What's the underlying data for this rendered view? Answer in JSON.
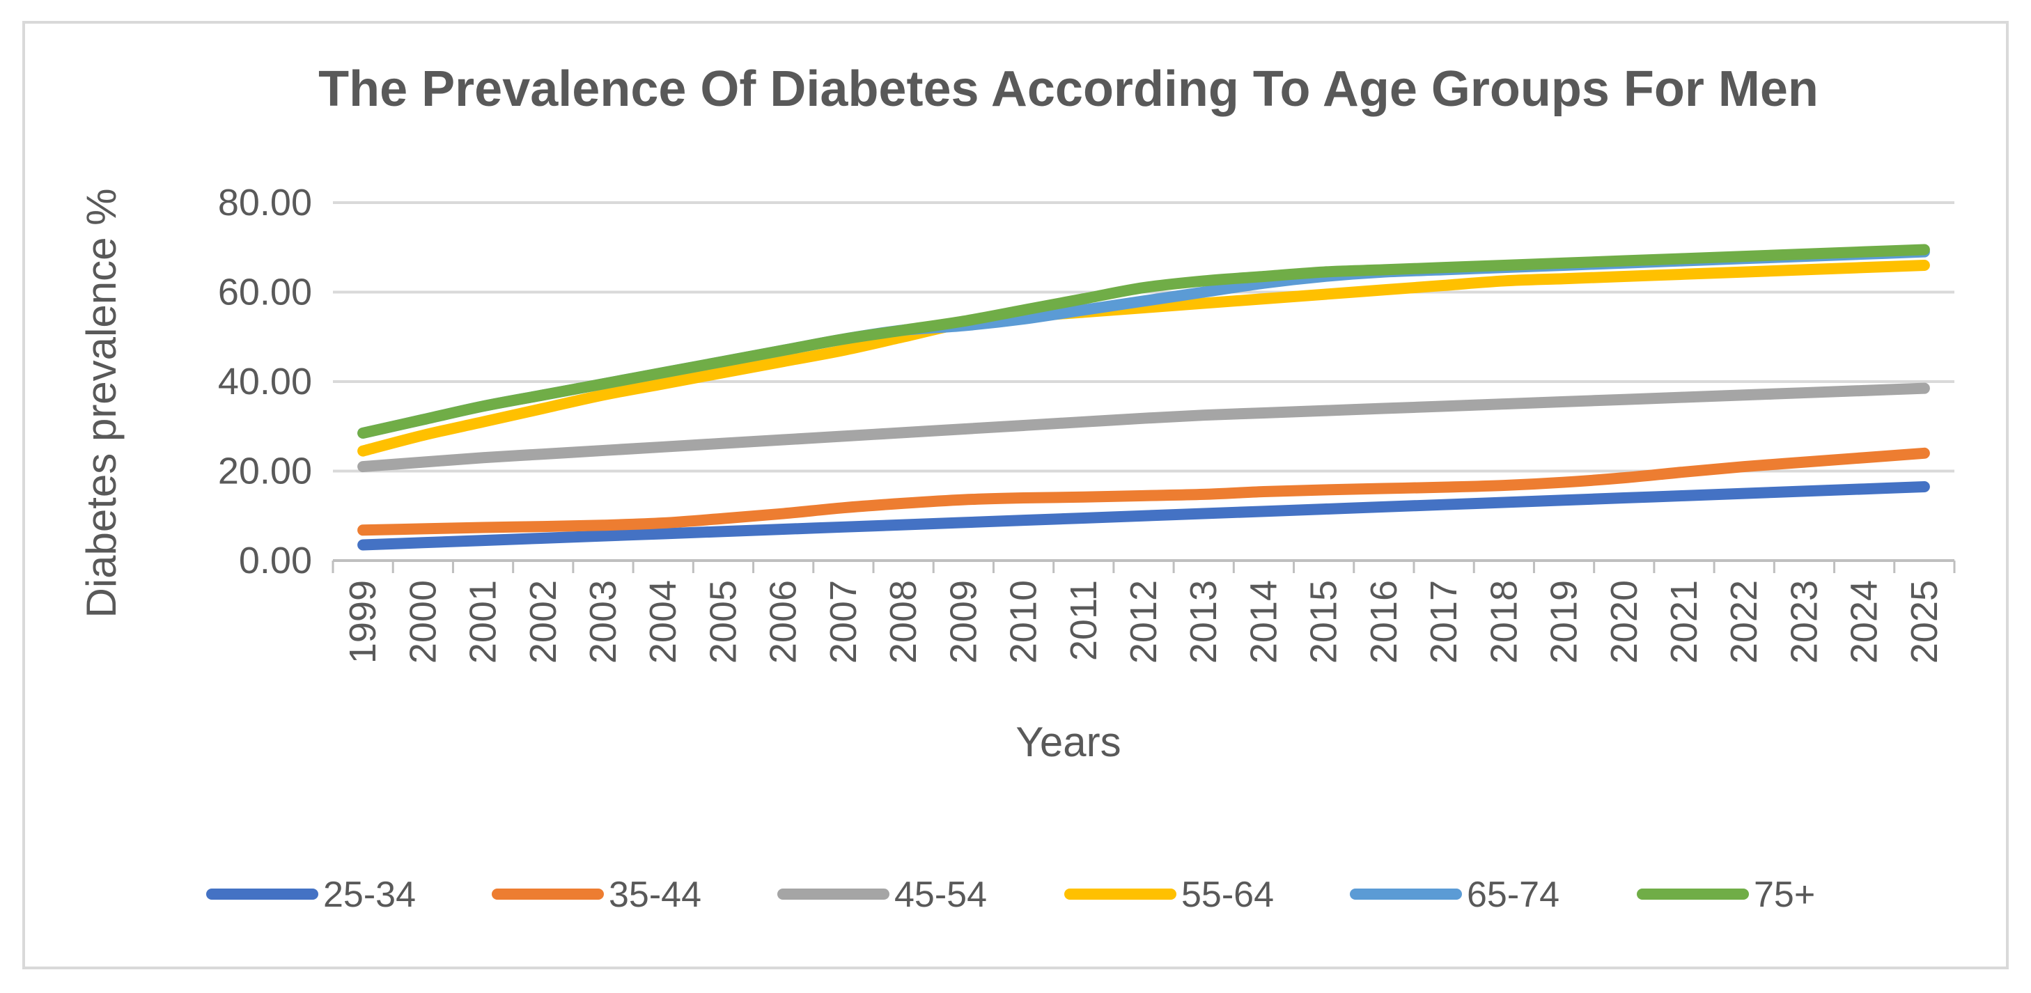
{
  "chart_data": {
    "type": "line",
    "title": "The Prevalence Of Diabetes According To Age Groups For Men",
    "xlabel": "Years",
    "ylabel": "Diabetes prevalence %",
    "ylim": [
      0,
      80
    ],
    "y_ticks": [
      "0.00",
      "20.00",
      "40.00",
      "60.00",
      "80.00"
    ],
    "grid": true,
    "legend_position": "bottom",
    "categories": [
      "1999",
      "2000",
      "2001",
      "2002",
      "2003",
      "2004",
      "2005",
      "2006",
      "2007",
      "2008",
      "2009",
      "2010",
      "2011",
      "2012",
      "2013",
      "2014",
      "2015",
      "2016",
      "2017",
      "2018",
      "2019",
      "2020",
      "2021",
      "2022",
      "2023",
      "2024",
      "2025"
    ],
    "series": [
      {
        "name": "25-34",
        "color": "#4472c4",
        "values": [
          3.5,
          4.0,
          4.5,
          5.0,
          5.5,
          6.0,
          6.5,
          7.0,
          7.5,
          8.0,
          8.5,
          9.0,
          9.5,
          10.0,
          10.5,
          11.0,
          11.5,
          12.0,
          12.5,
          13.0,
          13.5,
          14.0,
          14.5,
          15.0,
          15.5,
          16.0,
          16.5
        ]
      },
      {
        "name": "35-44",
        "color": "#ed7d31",
        "values": [
          6.8,
          7.1,
          7.4,
          7.6,
          7.9,
          8.4,
          9.4,
          10.5,
          11.8,
          12.8,
          13.6,
          14.0,
          14.2,
          14.5,
          14.8,
          15.4,
          15.8,
          16.1,
          16.4,
          16.8,
          17.5,
          18.5,
          19.8,
          21.0,
          22.0,
          23.0,
          24.0
        ]
      },
      {
        "name": "45-54",
        "color": "#a5a5a5",
        "values": [
          21.0,
          22.0,
          23.0,
          23.8,
          24.6,
          25.4,
          26.2,
          27.0,
          27.8,
          28.6,
          29.4,
          30.2,
          31.0,
          31.8,
          32.5,
          33.0,
          33.5,
          34.0,
          34.5,
          35.0,
          35.5,
          36.0,
          36.5,
          37.0,
          37.5,
          38.0,
          38.5
        ]
      },
      {
        "name": "55-64",
        "color": "#ffc000",
        "values": [
          24.5,
          28.0,
          31.0,
          34.0,
          37.0,
          39.5,
          42.0,
          44.5,
          47.0,
          50.0,
          53.0,
          54.5,
          55.5,
          56.5,
          57.5,
          58.5,
          59.5,
          60.5,
          61.5,
          62.5,
          63.0,
          63.5,
          64.0,
          64.5,
          65.0,
          65.5,
          66.0
        ]
      },
      {
        "name": "65-74",
        "color": "#5b9bd5",
        "values": [
          28.5,
          31.5,
          34.5,
          37.0,
          39.5,
          42.0,
          44.5,
          47.0,
          49.5,
          51.5,
          52.5,
          54.0,
          56.0,
          58.0,
          60.0,
          62.0,
          63.5,
          64.5,
          65.0,
          65.5,
          66.0,
          66.5,
          67.0,
          67.5,
          68.0,
          68.5,
          69.0
        ]
      },
      {
        "name": "75+",
        "color": "#70ad47",
        "values": [
          28.5,
          31.5,
          34.5,
          37.0,
          39.5,
          42.0,
          44.5,
          47.0,
          49.5,
          51.5,
          53.5,
          56.0,
          58.5,
          61.0,
          62.5,
          63.5,
          64.5,
          65.0,
          65.5,
          66.0,
          66.5,
          67.0,
          67.5,
          68.0,
          68.5,
          69.0,
          69.5
        ]
      }
    ]
  }
}
